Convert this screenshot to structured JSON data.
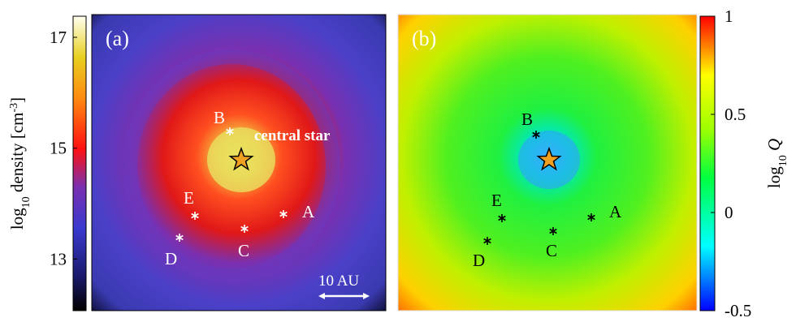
{
  "panels": [
    {
      "label": "(a)",
      "annotation": "central star",
      "scale_bar": "10 AU",
      "points": [
        {
          "label": "A"
        },
        {
          "label": "B"
        },
        {
          "label": "C"
        },
        {
          "label": "D"
        },
        {
          "label": "E"
        }
      ]
    },
    {
      "label": "(b)",
      "points": [
        {
          "label": "A"
        },
        {
          "label": "B"
        },
        {
          "label": "C"
        },
        {
          "label": "D"
        },
        {
          "label": "E"
        }
      ]
    }
  ],
  "colorbars": [
    {
      "label_parts": [
        "log",
        "10",
        " density [cm",
        "-3",
        "]"
      ],
      "lim": [
        12.07,
        17.38
      ],
      "ticks": [
        13,
        15,
        17
      ]
    },
    {
      "label_parts": [
        "log",
        "10",
        " Q"
      ],
      "lim": [
        -0.5,
        1
      ],
      "ticks": [
        -0.5,
        0,
        0.5,
        1
      ]
    }
  ]
}
